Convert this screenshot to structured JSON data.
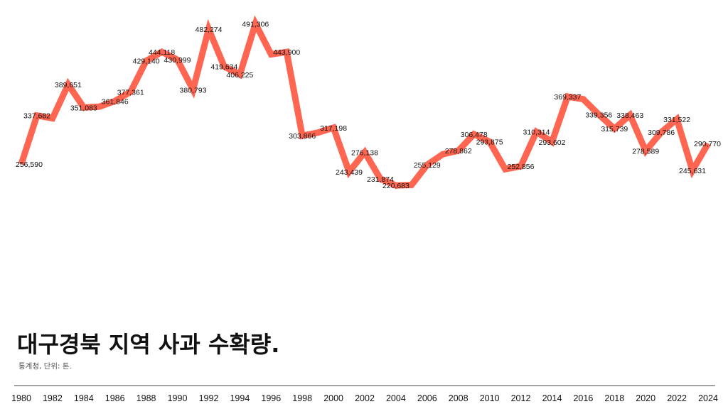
{
  "chart_data": {
    "type": "line",
    "title": "대구경북 지역 사과 수확량.",
    "subtitle": "통계청, 단위: 톤.",
    "x": [
      1980,
      1981,
      1982,
      1983,
      1984,
      1985,
      1986,
      1987,
      1988,
      1989,
      1990,
      1991,
      1992,
      1993,
      1994,
      1995,
      1996,
      1997,
      1998,
      1999,
      2000,
      2001,
      2002,
      2003,
      2004,
      2005,
      2006,
      2007,
      2008,
      2009,
      2010,
      2011,
      2012,
      2013,
      2014,
      2015,
      2016,
      2017,
      2018,
      2019,
      2020,
      2021,
      2022,
      2023,
      2024
    ],
    "x_ticks": [
      "1980",
      "1982",
      "1984",
      "1986",
      "1988",
      "1990",
      "1992",
      "1994",
      "1996",
      "1998",
      "2000",
      "2002",
      "2004",
      "2006",
      "2008",
      "2010",
      "2012",
      "2014",
      "2016",
      "2018",
      "2020",
      "2022",
      "2024"
    ],
    "series": [
      {
        "values": [
          256590,
          337682,
          333000,
          389651,
          351083,
          352500,
          361846,
          377361,
          429140,
          444118,
          430999,
          380793,
          482274,
          419634,
          406225,
          491306,
          440000,
          443900,
          303866,
          309000,
          317198,
          243439,
          276138,
          231874,
          220683,
          221500,
          255129,
          273000,
          278862,
          306478,
          293875,
          248000,
          252856,
          310314,
          293602,
          369337,
          365000,
          339356,
          315739,
          338463,
          278589,
          309786,
          331522,
          245631,
          290770
        ],
        "labels": [
          "256,590",
          "337,682",
          "",
          "389,651",
          "351,083",
          "",
          "361,846",
          "377,361",
          "429,140",
          "444,118",
          "430,999",
          "380,793",
          "482,274",
          "419,634",
          "406,225",
          "491,306",
          "",
          "443,900",
          "303,866",
          "",
          "317,198",
          "243,439",
          "276,138",
          "231,874",
          "220,683",
          "",
          "255,129",
          "",
          "278,862",
          "306,478",
          "293,875",
          "",
          "252,856",
          "310,314",
          "293,602",
          "369,337",
          "",
          "339,356",
          "315,739",
          "338,463",
          "278,589",
          "309,786",
          "331,522",
          "245,631",
          "290,770"
        ],
        "color": "#ff6652"
      }
    ],
    "xlabel": "",
    "ylabel": "",
    "xlim": [
      1980,
      2024
    ],
    "ylim": [
      120000,
      500000
    ],
    "grid": false,
    "legend": "none"
  }
}
